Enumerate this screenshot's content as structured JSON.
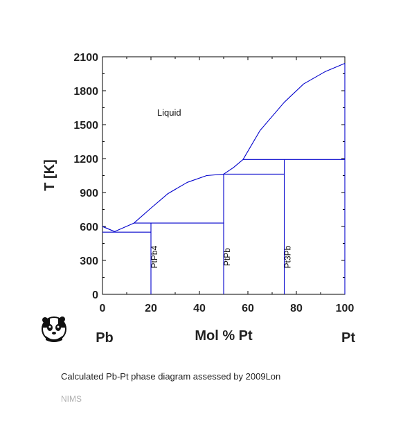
{
  "chart_data": {
    "type": "line",
    "title": "",
    "xlabel": "Mol % Pt",
    "ylabel": "T [K]",
    "xlim": [
      0,
      100
    ],
    "ylim": [
      0,
      2100
    ],
    "xticks": [
      0,
      20,
      40,
      60,
      80,
      100
    ],
    "yticks": [
      0,
      300,
      600,
      900,
      1200,
      1500,
      1800,
      2100
    ],
    "line_color": "#0000cc",
    "grid": false,
    "end_labels": {
      "left": "Pb",
      "right": "Pt"
    },
    "region_labels": [
      {
        "text": "Liquid",
        "x": 27.5,
        "y": 1580
      }
    ],
    "phase_labels": [
      {
        "text": "PtPb4",
        "x": 22.5,
        "y": 330
      },
      {
        "text": "PtPb",
        "x": 52.5,
        "y": 330
      },
      {
        "text": "Pt3Pb",
        "x": 77.5,
        "y": 330
      }
    ],
    "series": [
      {
        "values": [
          [
            0,
            600
          ],
          [
            5,
            555
          ],
          [
            13,
            630
          ],
          [
            20,
            762
          ],
          [
            27,
            890
          ],
          [
            35,
            990
          ],
          [
            43,
            1050
          ],
          [
            50,
            1063
          ]
        ]
      },
      {
        "values": [
          [
            50,
            1063
          ],
          [
            54,
            1120
          ],
          [
            58,
            1192
          ]
        ]
      },
      {
        "values": [
          [
            58,
            1192
          ],
          [
            65,
            1448
          ],
          [
            75,
            1698
          ],
          [
            83,
            1860
          ],
          [
            92,
            1970
          ],
          [
            100,
            2042
          ]
        ]
      },
      {
        "values": [
          [
            0,
            600
          ],
          [
            5,
            555
          ]
        ]
      },
      {
        "values": [
          [
            0,
            550
          ],
          [
            20,
            550
          ]
        ]
      },
      {
        "values": [
          [
            13,
            630
          ],
          [
            50,
            630
          ]
        ]
      },
      {
        "values": [
          [
            50,
            1063
          ],
          [
            75,
            1063
          ]
        ]
      },
      {
        "values": [
          [
            58,
            1192
          ],
          [
            100,
            1192
          ]
        ]
      },
      {
        "values": [
          [
            20,
            0
          ],
          [
            20,
            630
          ]
        ]
      },
      {
        "values": [
          [
            50,
            0
          ],
          [
            50,
            1063
          ]
        ]
      },
      {
        "values": [
          [
            75,
            0
          ],
          [
            75,
            1192
          ]
        ]
      },
      {
        "values": [
          [
            100,
            0
          ],
          [
            100,
            2042
          ]
        ]
      }
    ]
  },
  "caption": "Calculated Pb-Pt phase diagram assessed by 2009Lon",
  "credit": "NIMS",
  "logo": {
    "icon": "panda-icon"
  }
}
